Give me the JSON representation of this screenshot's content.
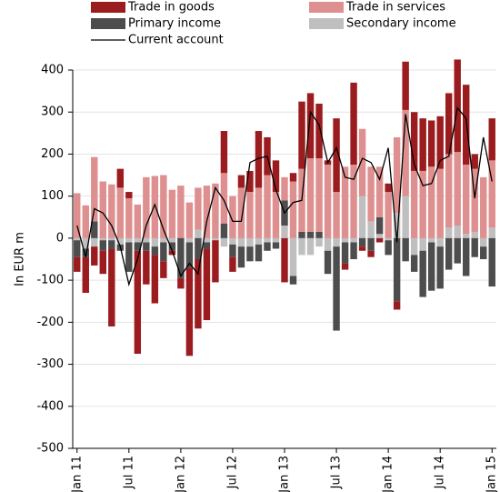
{
  "chart_data": {
    "type": "bar",
    "stacked": true,
    "ylabel": "In EUR m",
    "categories": [
      "Jan 11",
      null,
      null,
      null,
      null,
      null,
      "Jul 11",
      null,
      null,
      null,
      null,
      null,
      "Jan 12",
      null,
      null,
      null,
      null,
      null,
      "Jul 12",
      null,
      null,
      null,
      null,
      null,
      "Jan 13",
      null,
      null,
      null,
      null,
      null,
      "Jul 13",
      null,
      null,
      null,
      null,
      null,
      "Jan 14",
      null,
      null,
      null,
      null,
      null,
      "Jul 14",
      null,
      null,
      null,
      null,
      null,
      "Jan 15"
    ],
    "series": [
      {
        "name": "Trade in goods",
        "color": "#9b1c1f",
        "values": [
          -35,
          -85,
          -45,
          -55,
          -185,
          45,
          15,
          -245,
          -80,
          -115,
          -40,
          -10,
          -25,
          -210,
          -165,
          -170,
          -100,
          100,
          -35,
          30,
          50,
          135,
          90,
          75,
          -105,
          20,
          160,
          155,
          130,
          10,
          175,
          -15,
          195,
          -10,
          -15,
          -10,
          20,
          -20,
          115,
          140,
          125,
          110,
          125,
          145,
          220,
          190,
          35,
          0,
          100
        ]
      },
      {
        "name": "Trade in services",
        "color": "#de8f8f",
        "values": [
          107,
          78,
          153,
          135,
          128,
          120,
          95,
          80,
          145,
          148,
          150,
          115,
          125,
          85,
          100,
          125,
          130,
          120,
          100,
          120,
          110,
          120,
          150,
          110,
          55,
          135,
          150,
          175,
          175,
          175,
          110,
          170,
          175,
          160,
          130,
          120,
          110,
          180,
          205,
          160,
          160,
          170,
          165,
          175,
          175,
          165,
          150,
          145,
          160
        ]
      },
      {
        "name": "Primary income",
        "color": "#4d4d4d",
        "values": [
          -40,
          -20,
          40,
          -25,
          -20,
          -15,
          -70,
          -20,
          -20,
          -20,
          -45,
          -20,
          -95,
          -60,
          -50,
          -15,
          0,
          35,
          -30,
          -50,
          -35,
          -40,
          -20,
          -15,
          60,
          -20,
          15,
          15,
          15,
          -55,
          -200,
          -50,
          -40,
          -20,
          -30,
          40,
          -35,
          -150,
          -55,
          -40,
          -110,
          -115,
          -100,
          -75,
          -60,
          -90,
          -45,
          -30,
          -115
        ]
      },
      {
        "name": "Secondary income",
        "color": "#bfbfbf",
        "values": [
          -5,
          -25,
          -20,
          -5,
          -5,
          -15,
          -10,
          -10,
          -10,
          -20,
          -10,
          -10,
          0,
          -10,
          20,
          -10,
          -5,
          -20,
          -15,
          -20,
          -20,
          -15,
          -10,
          -10,
          30,
          -90,
          -40,
          -40,
          -20,
          -30,
          -20,
          -10,
          -10,
          100,
          40,
          10,
          -5,
          60,
          100,
          -40,
          -30,
          -10,
          -20,
          25,
          30,
          10,
          15,
          -20,
          25
        ]
      },
      {
        "name": "Current account",
        "color": "#000000",
        "type": "line",
        "values": [
          30,
          -45,
          70,
          60,
          30,
          -20,
          -110,
          -50,
          30,
          80,
          20,
          -30,
          -90,
          -60,
          -85,
          40,
          120,
          90,
          40,
          40,
          180,
          190,
          195,
          115,
          60,
          85,
          90,
          300,
          270,
          180,
          215,
          145,
          140,
          190,
          180,
          140,
          215,
          -10,
          295,
          175,
          125,
          130,
          185,
          195,
          310,
          285,
          95,
          240,
          135
        ]
      }
    ],
    "ylim": [
      -500,
      400
    ],
    "yticks": [
      -500,
      -400,
      -300,
      -200,
      -100,
      0,
      100,
      200,
      300,
      400
    ],
    "grid": true
  }
}
